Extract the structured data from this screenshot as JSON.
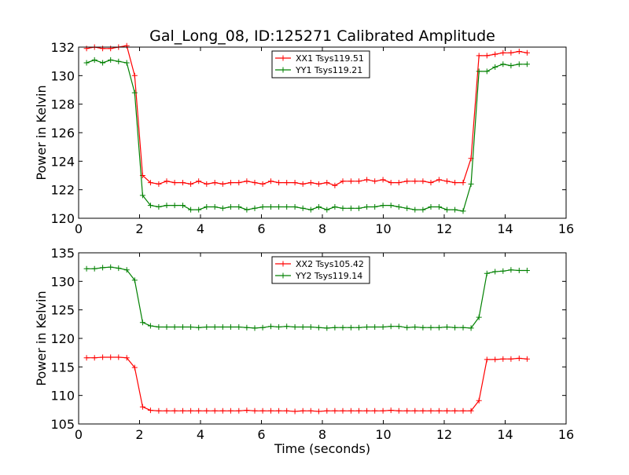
{
  "title": "Gal_Long_08, ID:125271 Calibrated Amplitude",
  "chart_data": [
    {
      "type": "line",
      "title": "Gal_Long_08, ID:125271 Calibrated Amplitude",
      "xlabel": "",
      "ylabel": "Power in Kelvin",
      "xlim": [
        0,
        16
      ],
      "ylim": [
        120,
        132
      ],
      "xticks": [
        "0",
        "2",
        "4",
        "6",
        "8",
        "10",
        "12",
        "14",
        "16"
      ],
      "yticks": [
        "120",
        "122",
        "124",
        "126",
        "128",
        "130",
        "132"
      ],
      "legend_position": "top-center",
      "series": [
        {
          "name": "XX1 Tsys119.51",
          "color": "#ff0000",
          "x": [
            0.26,
            0.52,
            0.79,
            1.05,
            1.31,
            1.58,
            1.84,
            2.1,
            2.36,
            2.63,
            2.89,
            3.15,
            3.42,
            3.68,
            3.94,
            4.2,
            4.47,
            4.73,
            4.99,
            5.26,
            5.52,
            5.78,
            6.04,
            6.31,
            6.57,
            6.83,
            7.1,
            7.36,
            7.62,
            7.88,
            8.15,
            8.41,
            8.67,
            8.94,
            9.2,
            9.46,
            9.72,
            9.99,
            10.25,
            10.51,
            10.78,
            11.04,
            11.3,
            11.56,
            11.83,
            12.09,
            12.35,
            12.62,
            12.88,
            13.14,
            13.4,
            13.67,
            13.93,
            14.19,
            14.46,
            14.72
          ],
          "values": [
            131.9,
            132.0,
            131.9,
            131.9,
            132.0,
            132.1,
            130.0,
            123.0,
            122.5,
            122.4,
            122.6,
            122.5,
            122.5,
            122.4,
            122.6,
            122.4,
            122.5,
            122.4,
            122.5,
            122.5,
            122.6,
            122.5,
            122.4,
            122.6,
            122.5,
            122.5,
            122.5,
            122.4,
            122.5,
            122.4,
            122.5,
            122.3,
            122.6,
            122.6,
            122.6,
            122.7,
            122.6,
            122.7,
            122.5,
            122.5,
            122.6,
            122.6,
            122.6,
            122.5,
            122.7,
            122.6,
            122.5,
            122.5,
            124.2,
            131.4,
            131.4,
            131.5,
            131.6,
            131.6,
            131.7,
            131.6
          ]
        },
        {
          "name": "YY1 Tsys119.21",
          "color": "#008000",
          "x": [
            0.26,
            0.52,
            0.79,
            1.05,
            1.31,
            1.58,
            1.84,
            2.1,
            2.36,
            2.63,
            2.89,
            3.15,
            3.42,
            3.68,
            3.94,
            4.2,
            4.47,
            4.73,
            4.99,
            5.26,
            5.52,
            5.78,
            6.04,
            6.31,
            6.57,
            6.83,
            7.1,
            7.36,
            7.62,
            7.88,
            8.15,
            8.41,
            8.67,
            8.94,
            9.2,
            9.46,
            9.72,
            9.99,
            10.25,
            10.51,
            10.78,
            11.04,
            11.3,
            11.56,
            11.83,
            12.09,
            12.35,
            12.62,
            12.88,
            13.14,
            13.4,
            13.67,
            13.93,
            14.19,
            14.46,
            14.72
          ],
          "values": [
            130.9,
            131.1,
            130.9,
            131.1,
            131.0,
            130.9,
            128.8,
            121.6,
            120.9,
            120.8,
            120.9,
            120.9,
            120.9,
            120.6,
            120.6,
            120.8,
            120.8,
            120.7,
            120.8,
            120.8,
            120.6,
            120.7,
            120.8,
            120.8,
            120.8,
            120.8,
            120.8,
            120.7,
            120.6,
            120.8,
            120.6,
            120.8,
            120.7,
            120.7,
            120.7,
            120.8,
            120.8,
            120.9,
            120.9,
            120.8,
            120.7,
            120.6,
            120.6,
            120.8,
            120.8,
            120.6,
            120.6,
            120.5,
            122.4,
            130.3,
            130.3,
            130.6,
            130.8,
            130.7,
            130.8,
            130.8
          ]
        }
      ]
    },
    {
      "type": "line",
      "title": "",
      "xlabel": "Time (seconds)",
      "ylabel": "Power in Kelvin",
      "xlim": [
        0,
        16
      ],
      "ylim": [
        105,
        135
      ],
      "xticks": [
        "0",
        "2",
        "4",
        "6",
        "8",
        "10",
        "12",
        "14",
        "16"
      ],
      "yticks": [
        "105",
        "110",
        "115",
        "120",
        "125",
        "130",
        "135"
      ],
      "legend_position": "top-center",
      "series": [
        {
          "name": "XX2 Tsys105.42",
          "color": "#ff0000",
          "x": [
            0.26,
            0.52,
            0.79,
            1.05,
            1.31,
            1.58,
            1.84,
            2.1,
            2.36,
            2.63,
            2.89,
            3.15,
            3.42,
            3.68,
            3.94,
            4.2,
            4.47,
            4.73,
            4.99,
            5.26,
            5.52,
            5.78,
            6.04,
            6.31,
            6.57,
            6.83,
            7.1,
            7.36,
            7.62,
            7.88,
            8.15,
            8.41,
            8.67,
            8.94,
            9.2,
            9.46,
            9.72,
            9.99,
            10.25,
            10.51,
            10.78,
            11.04,
            11.3,
            11.56,
            11.83,
            12.09,
            12.35,
            12.62,
            12.88,
            13.14,
            13.4,
            13.67,
            13.93,
            14.19,
            14.46,
            14.72
          ],
          "values": [
            116.6,
            116.6,
            116.7,
            116.7,
            116.7,
            116.6,
            114.9,
            108.0,
            107.4,
            107.3,
            107.3,
            107.3,
            107.3,
            107.3,
            107.3,
            107.3,
            107.3,
            107.3,
            107.3,
            107.3,
            107.4,
            107.3,
            107.3,
            107.3,
            107.3,
            107.3,
            107.2,
            107.3,
            107.3,
            107.2,
            107.3,
            107.3,
            107.3,
            107.3,
            107.3,
            107.3,
            107.3,
            107.3,
            107.4,
            107.3,
            107.3,
            107.3,
            107.3,
            107.3,
            107.3,
            107.3,
            107.3,
            107.3,
            107.3,
            109.1,
            116.3,
            116.3,
            116.4,
            116.4,
            116.5,
            116.4
          ]
        },
        {
          "name": "YY2 Tsys119.14",
          "color": "#008000",
          "x": [
            0.26,
            0.52,
            0.79,
            1.05,
            1.31,
            1.58,
            1.84,
            2.1,
            2.36,
            2.63,
            2.89,
            3.15,
            3.42,
            3.68,
            3.94,
            4.2,
            4.47,
            4.73,
            4.99,
            5.26,
            5.52,
            5.78,
            6.04,
            6.31,
            6.57,
            6.83,
            7.1,
            7.36,
            7.62,
            7.88,
            8.15,
            8.41,
            8.67,
            8.94,
            9.2,
            9.46,
            9.72,
            9.99,
            10.25,
            10.51,
            10.78,
            11.04,
            11.3,
            11.56,
            11.83,
            12.09,
            12.35,
            12.62,
            12.88,
            13.14,
            13.4,
            13.67,
            13.93,
            14.19,
            14.46,
            14.72
          ],
          "values": [
            132.2,
            132.2,
            132.4,
            132.5,
            132.3,
            132.0,
            130.2,
            122.8,
            122.2,
            122.0,
            122.0,
            122.0,
            122.0,
            122.0,
            121.9,
            122.0,
            122.0,
            122.0,
            122.0,
            122.0,
            121.9,
            121.8,
            121.9,
            122.1,
            122.0,
            122.1,
            122.0,
            122.0,
            122.0,
            121.9,
            121.8,
            121.9,
            121.9,
            121.9,
            121.9,
            122.0,
            122.0,
            122.0,
            122.1,
            122.1,
            121.9,
            122.0,
            121.9,
            121.9,
            121.9,
            122.0,
            121.9,
            121.9,
            121.8,
            123.7,
            131.4,
            131.7,
            131.8,
            132.0,
            131.9,
            131.9
          ]
        }
      ]
    }
  ]
}
